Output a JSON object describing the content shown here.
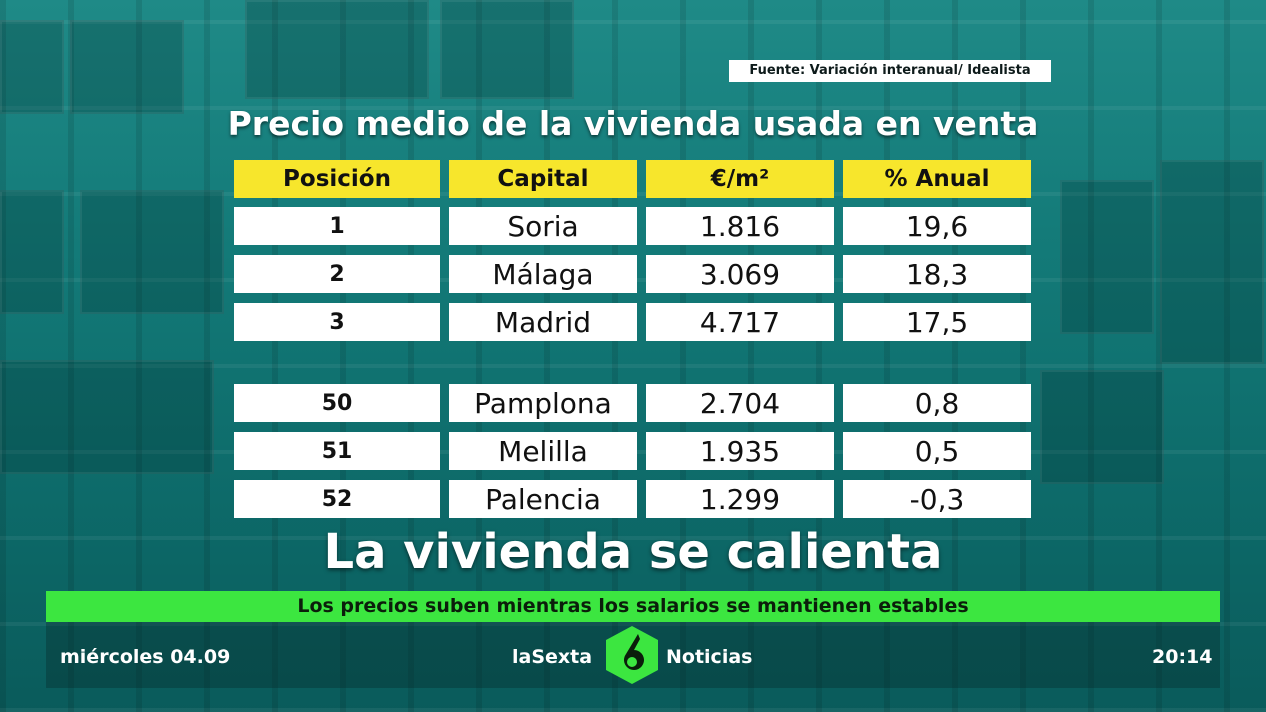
{
  "source": "Fuente: Variación interanual/ Idealista",
  "title": "Precio medio de la vivienda usada en venta",
  "table": {
    "headers": [
      "Posición",
      "Capital",
      "€/m²",
      "% Anual"
    ],
    "rows_top": [
      {
        "pos": "1",
        "capital": "Soria",
        "price": "1.816",
        "annual": "19,6"
      },
      {
        "pos": "2",
        "capital": "Málaga",
        "price": "3.069",
        "annual": "18,3"
      },
      {
        "pos": "3",
        "capital": "Madrid",
        "price": "4.717",
        "annual": "17,5"
      }
    ],
    "rows_bottom": [
      {
        "pos": "50",
        "capital": "Pamplona",
        "price": "2.704",
        "annual": "0,8"
      },
      {
        "pos": "51",
        "capital": "Melilla",
        "price": "1.935",
        "annual": "0,5"
      },
      {
        "pos": "52",
        "capital": "Palencia",
        "price": "1.299",
        "annual": "-0,3"
      }
    ]
  },
  "headline": "La vivienda se calienta",
  "ticker": "Los precios suben mientras los salarios se mantienen estables",
  "footer": {
    "date": "miércoles 04.09",
    "brand_left": "laSexta",
    "brand_right": "Noticias",
    "logo_icon": "lasexta-6-logo",
    "time": "20:14"
  },
  "colors": {
    "header_yellow": "#f7e62c",
    "ticker_green": "#3ce640",
    "logo_green": "#3ce640"
  }
}
